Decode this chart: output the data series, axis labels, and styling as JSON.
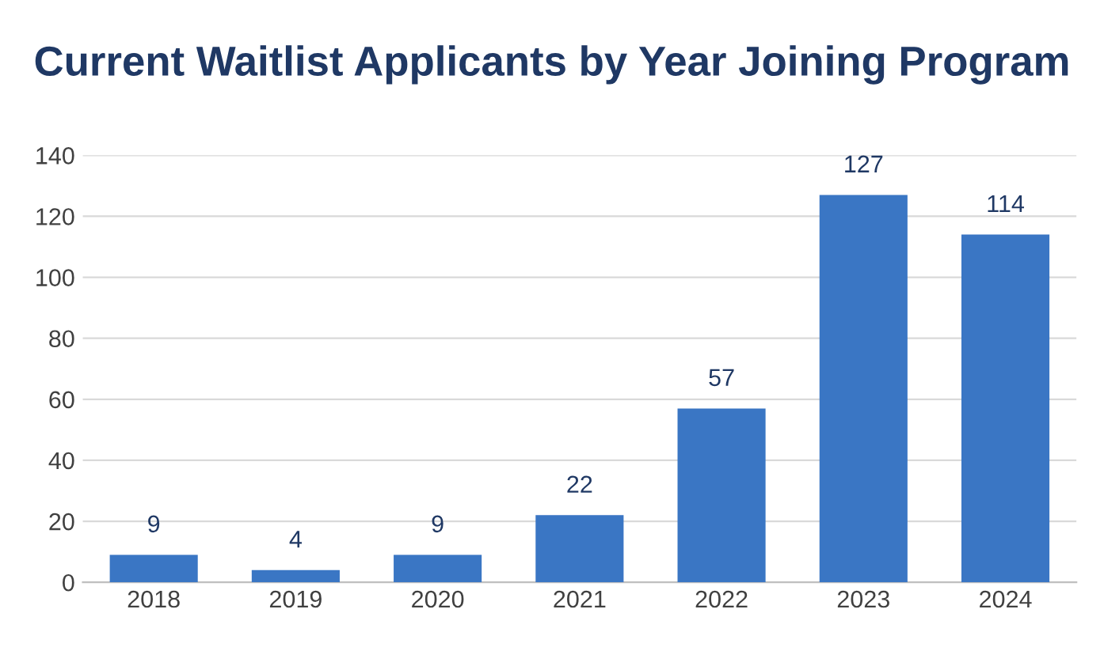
{
  "chart_data": {
    "type": "bar",
    "title": "Current Waitlist Applicants by Year Joining Program",
    "categories": [
      "2018",
      "2019",
      "2020",
      "2021",
      "2022",
      "2023",
      "2024"
    ],
    "values": [
      9,
      4,
      9,
      22,
      57,
      127,
      114
    ],
    "color": "#3a76c4",
    "ylim": [
      0,
      140
    ],
    "yticks": [
      0,
      20,
      40,
      60,
      80,
      100,
      120,
      140
    ],
    "grid": "y",
    "data_labels": true
  }
}
